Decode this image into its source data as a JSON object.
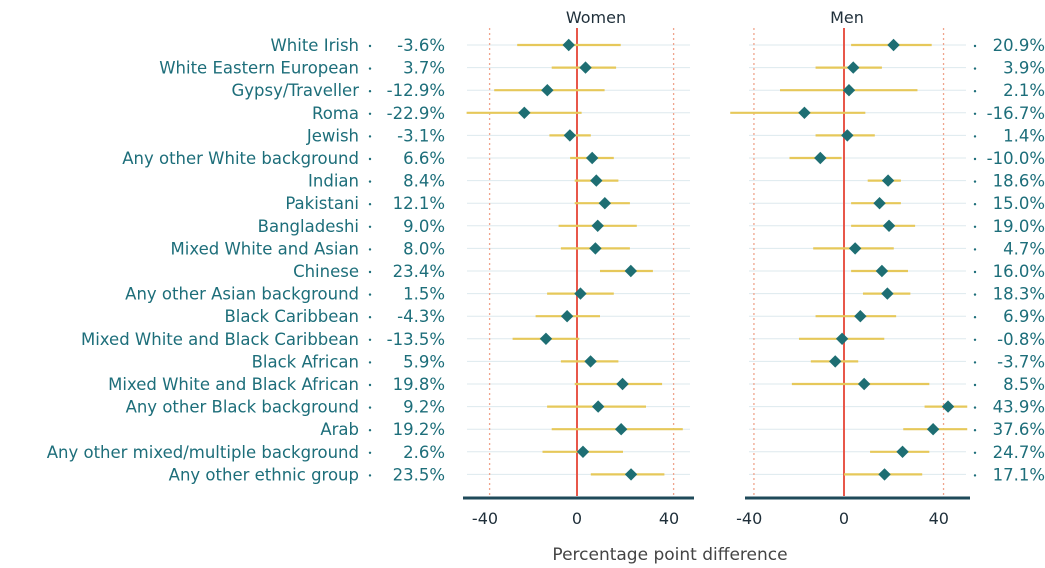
{
  "chart_data": {
    "type": "scatter",
    "subtype": "dot-with-confidence-interval",
    "xlabel": "Percentage point difference",
    "xticks": [
      -40,
      0,
      40
    ],
    "xlim": [
      -48,
      48
    ],
    "reference_line": 0,
    "dotted_reference_lines": [
      -38,
      42
    ],
    "categories": [
      "White Irish",
      "White Eastern European",
      "Gypsy/Traveller",
      "Roma",
      "Jewish",
      "Any other White background",
      "Indian",
      "Pakistani",
      "Bangladeshi",
      "Mixed White and Asian",
      "Chinese",
      "Any other Asian background",
      "Black Caribbean",
      "Mixed White and Black Caribbean",
      "Black African",
      "Mixed White and Black African",
      "Any other Black background",
      "Arab",
      "Any other mixed/multiple background",
      "Any other ethnic group"
    ],
    "panels": [
      {
        "title": "Women",
        "value_labels": [
          "-3.6%",
          "3.7%",
          "-12.9%",
          "-22.9%",
          "-3.1%",
          "6.6%",
          "8.4%",
          "12.1%",
          "9.0%",
          "8.0%",
          "23.4%",
          "1.5%",
          "-4.3%",
          "-13.5%",
          "5.9%",
          "19.8%",
          "9.2%",
          "19.2%",
          "2.6%",
          "23.5%"
        ],
        "estimates": [
          -3.6,
          3.7,
          -12.9,
          -22.9,
          -3.1,
          6.6,
          8.4,
          12.1,
          9.0,
          8.0,
          23.4,
          1.5,
          -4.3,
          -13.5,
          5.9,
          19.8,
          9.2,
          19.2,
          2.6,
          23.5
        ],
        "ci_low": [
          -26,
          -11,
          -36,
          -48,
          -12,
          -3,
          -1,
          -1,
          -8,
          -7,
          10,
          -13,
          -18,
          -28,
          -7,
          -1,
          -13,
          -11,
          -15,
          6
        ],
        "ci_high": [
          19,
          17,
          12,
          2,
          6,
          16,
          18,
          23,
          26,
          23,
          33,
          16,
          10,
          1,
          18,
          37,
          30,
          46,
          20,
          38
        ]
      },
      {
        "title": "Men",
        "value_labels": [
          "20.9%",
          "3.9%",
          "2.1%",
          "-16.7%",
          "1.4%",
          "-10.0%",
          "18.6%",
          "15.0%",
          "19.0%",
          "4.7%",
          "16.0%",
          "18.3%",
          "6.9%",
          "-0.8%",
          "-3.7%",
          "8.5%",
          "43.9%",
          "37.6%",
          "24.7%",
          "17.1%"
        ],
        "estimates": [
          20.9,
          3.9,
          2.1,
          -16.7,
          1.4,
          -10.0,
          18.6,
          15.0,
          19.0,
          4.7,
          16.0,
          18.3,
          6.9,
          -0.8,
          -3.7,
          8.5,
          43.9,
          37.6,
          24.7,
          17.1
        ],
        "ci_low": [
          3,
          -12,
          -27,
          -48,
          -12,
          -23,
          10,
          3,
          3,
          -13,
          3,
          8,
          -12,
          -19,
          -14,
          -22,
          34,
          25,
          11,
          0
        ],
        "ci_high": [
          37,
          16,
          31,
          9,
          13,
          -1,
          24,
          24,
          30,
          21,
          27,
          28,
          22,
          17,
          6,
          36,
          52,
          52,
          36,
          33
        ]
      }
    ],
    "colors": {
      "marker": "#1e6e73",
      "ci_line": "#e6c85a",
      "zero_line": "#e8574a",
      "dotted_line": "#f0a48c",
      "row_line": "#dde9ee",
      "axis_line": "#1f4a5a",
      "label_text": "#1d6e7a"
    }
  }
}
